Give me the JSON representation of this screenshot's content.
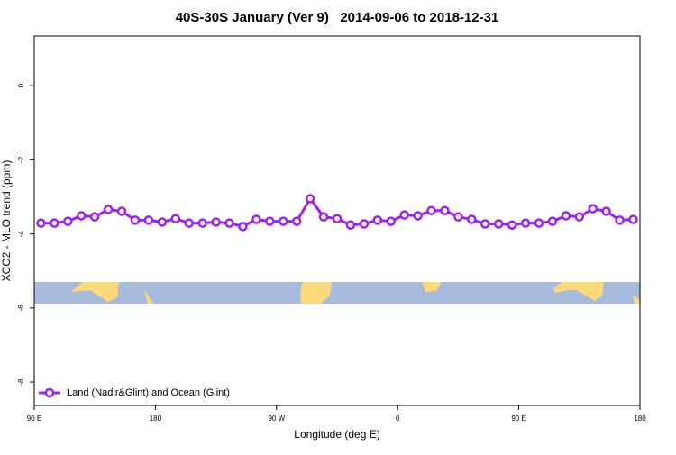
{
  "chart_data": {
    "type": "line",
    "title": "40S-30S January (Ver 9)   2014-09-06 to 2018-12-31",
    "x_label": "Longitude (deg E)",
    "y_label": "XCO2 - MLO trend (ppm)",
    "x": [
      95,
      105,
      115,
      125,
      135,
      145,
      155,
      165,
      175,
      185,
      195,
      205,
      215,
      225,
      235,
      245,
      255,
      265,
      275,
      285,
      295,
      305,
      315,
      325,
      335,
      345,
      355,
      365,
      375,
      385,
      395,
      405,
      415,
      425,
      435,
      445,
      455,
      465,
      475,
      485,
      495,
      505,
      515,
      525,
      535
    ],
    "series": [
      {
        "name": "Land (Nadir&Glint) and Ocean (Glint)",
        "color": "#a020f0",
        "values": [
          -3.71,
          -3.71,
          -3.66,
          -3.51,
          -3.54,
          -3.34,
          -3.39,
          -3.63,
          -3.63,
          -3.68,
          -3.59,
          -3.71,
          -3.71,
          -3.68,
          -3.71,
          -3.8,
          -3.61,
          -3.66,
          -3.66,
          -3.66,
          -3.05,
          -3.54,
          -3.59,
          -3.76,
          -3.73,
          -3.63,
          -3.66,
          -3.49,
          -3.51,
          -3.37,
          -3.37,
          -3.54,
          -3.61,
          -3.73,
          -3.73,
          -3.76,
          -3.71,
          -3.71,
          -3.66,
          -3.51,
          -3.54,
          -3.32,
          -3.39,
          -3.63,
          -3.61
        ]
      }
    ],
    "xlim": [
      90,
      540
    ],
    "ylim": [
      -8.63,
      1.34
    ],
    "xticks": [
      {
        "value": 90,
        "label": "90 E"
      },
      180,
      {
        "value": 270,
        "label": "90 W"
      },
      {
        "value": 360,
        "label": "0"
      },
      {
        "value": 450,
        "label": "90 E"
      },
      {
        "value": 540,
        "label": "180"
      }
    ],
    "yticks": [
      0,
      -2,
      -4,
      -6,
      -8
    ],
    "legend": "bottom-left"
  }
}
